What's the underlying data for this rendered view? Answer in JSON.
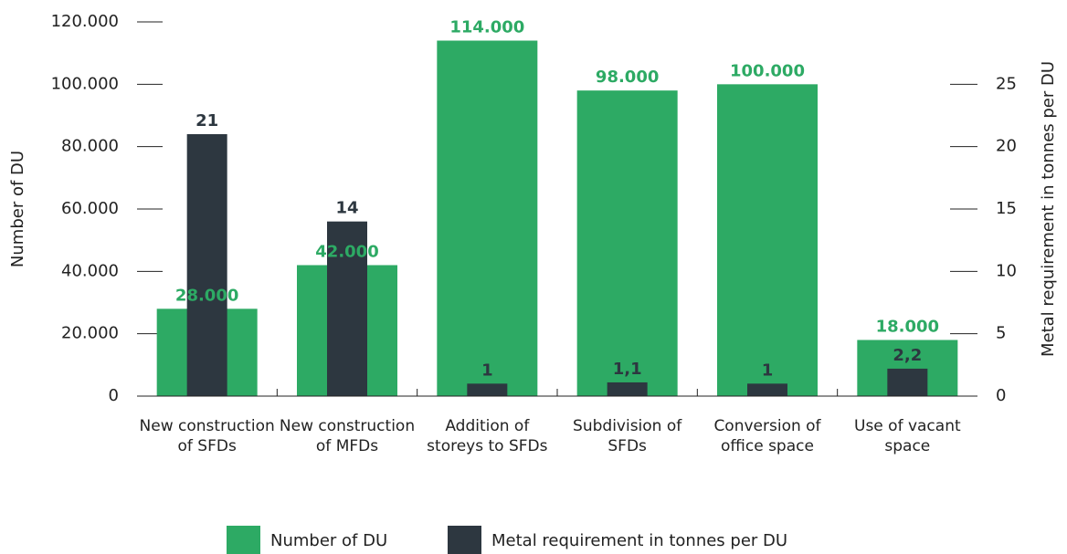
{
  "chart_data": {
    "type": "bar",
    "categories": [
      "New construction of SFDs",
      "New construction of MFDs",
      "Addition of storeys to SFDs",
      "Subdivision of SFDs",
      "Conversion of office space",
      "Use of vacant space"
    ],
    "series": [
      {
        "name": "Number of DU",
        "color": "#2daa64",
        "values": [
          28000,
          42000,
          114000,
          98000,
          100000,
          18000
        ],
        "value_labels": [
          "28.000",
          "42.000",
          "114.000",
          "98.000",
          "100.000",
          "18.000"
        ]
      },
      {
        "name": "Metal requirement in tonnes per DU",
        "color": "#2d3740",
        "axis": "y2",
        "values": [
          21,
          14,
          1,
          1.1,
          1,
          2.2
        ],
        "value_labels": [
          "21",
          "14",
          "1",
          "1,1",
          "1",
          "2,2"
        ]
      }
    ],
    "y_label": "Number of DU",
    "y2_label": "Metal requirement in tonnes per DU",
    "ylim": [
      0,
      120000
    ],
    "yticks": [
      0,
      {
        "value": 20000,
        "label": "20.000"
      },
      {
        "value": 40000,
        "label": "40.000"
      },
      {
        "value": 60000,
        "label": "60.000"
      },
      {
        "value": 80000,
        "label": "80.000"
      },
      {
        "value": 100000,
        "label": "100.000"
      },
      {
        "value": 120000,
        "label": "120.000"
      }
    ],
    "y2lim": [
      0,
      30
    ],
    "y2ticks": [
      0,
      5,
      10,
      15,
      20,
      25
    ],
    "legend": "bottom"
  }
}
